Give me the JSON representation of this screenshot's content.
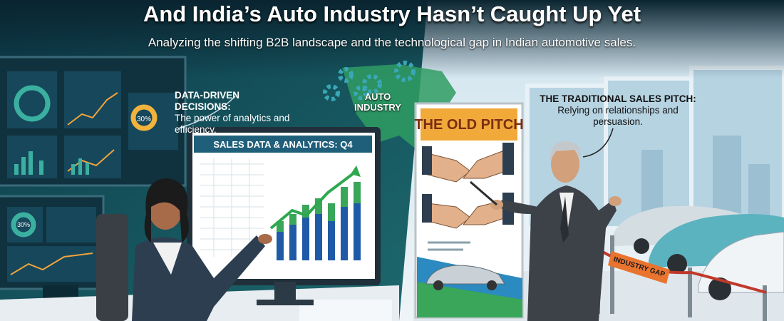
{
  "header": {
    "title": "And India’s Auto Industry Hasn’t Caught Up Yet",
    "subtitle": "Analyzing the shifting B2B landscape and the technological gap in Indian automotive sales."
  },
  "left_panel": {
    "callout": {
      "heading": "DATA-DRIVEN DECISIONS:",
      "text": "The power of analytics and efficiency."
    },
    "monitor_title": "SALES DATA & ANALYTICS: Q4",
    "gauges": [
      "30%",
      "30%"
    ]
  },
  "map_label": "AUTO INDUSTRY",
  "right_panel": {
    "banner_title": "THE OLD PITCH",
    "callout": {
      "heading": "THE TRADITIONAL SALES PITCH:",
      "text": "Relying on relationships and persuasion."
    },
    "barrier_sign": "INDUSTRY GAP"
  }
}
